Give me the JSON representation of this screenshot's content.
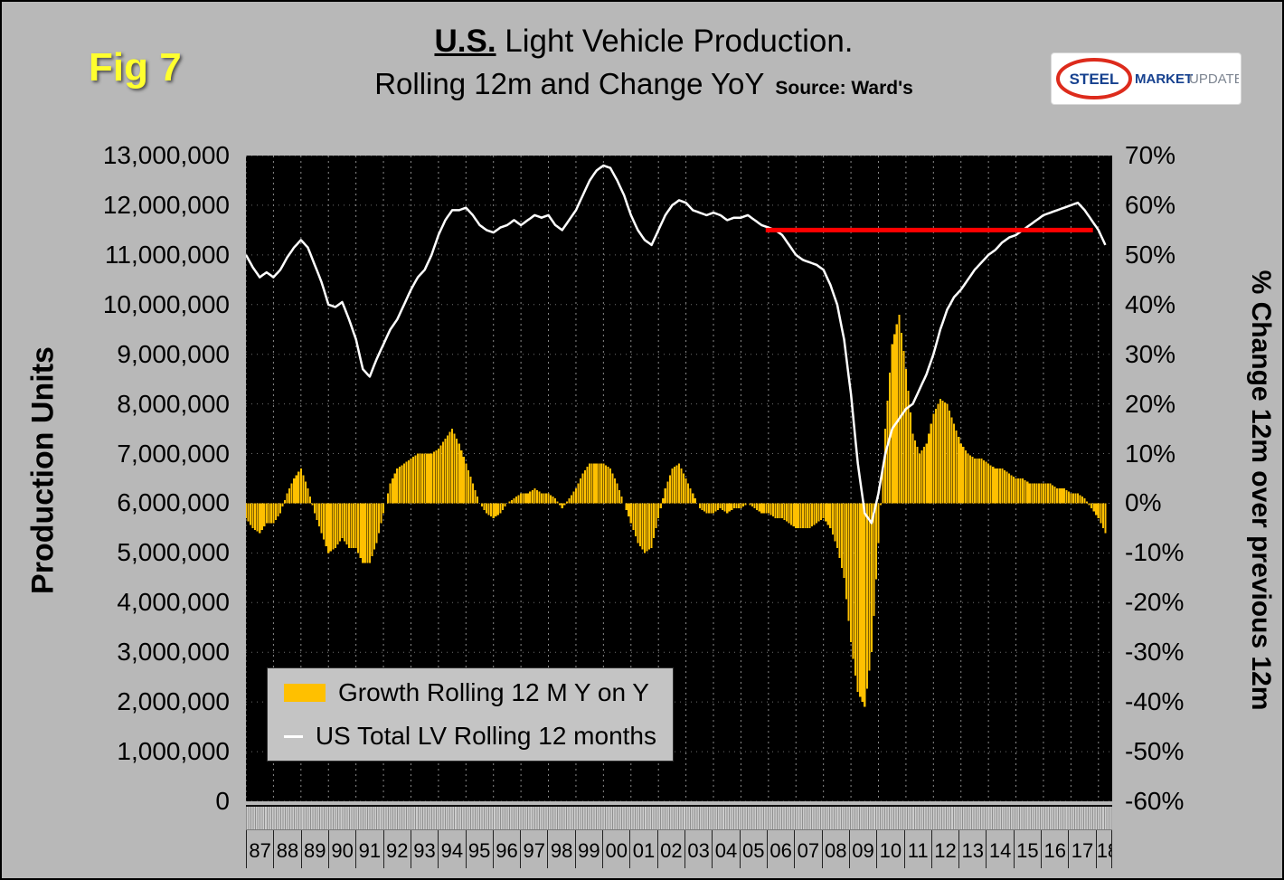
{
  "figure": {
    "fig_label": "Fig 7",
    "title_main_bold": "U.S.",
    "title_main_rest": " Light Vehicle Production.",
    "title_sub": "Rolling 12m and Change YoY",
    "source": "Source: Ward's"
  },
  "logo": {
    "steel": "STEEL",
    "market": "MARKET",
    "update": "UPDATE"
  },
  "axes": {
    "left_title": "Production Units",
    "right_title": "% Change 12m over previous 12m",
    "left_ticks": [
      "13,000,000",
      "12,000,000",
      "11,000,000",
      "10,000,000",
      "9,000,000",
      "8,000,000",
      "7,000,000",
      "6,000,000",
      "5,000,000",
      "4,000,000",
      "3,000,000",
      "2,000,000",
      "1,000,000",
      "0"
    ],
    "right_ticks": [
      "70%",
      "60%",
      "50%",
      "40%",
      "30%",
      "20%",
      "10%",
      "0%",
      "-10%",
      "-20%",
      "-30%",
      "-40%",
      "-50%",
      "-60%"
    ],
    "x_ticks": [
      "87",
      "88",
      "89",
      "90",
      "91",
      "92",
      "93",
      "94",
      "95",
      "96",
      "97",
      "98",
      "99",
      "00",
      "01",
      "02",
      "03",
      "04",
      "05",
      "06",
      "07",
      "08",
      "09",
      "10",
      "11",
      "12",
      "13",
      "14",
      "15",
      "16",
      "17",
      "18"
    ]
  },
  "legend": {
    "bar_label": "Growth Rolling 12 M Y on Y",
    "line_label": "US Total LV Rolling 12 months"
  },
  "colors": {
    "page_bg": "#b8b8b8",
    "plot_bg": "#000000",
    "bar": "#FFC000",
    "line": "#FFFFFF",
    "reference": "#FF0000",
    "fig_label": "#ffff2e"
  },
  "chart_data": {
    "type": "combo",
    "title": "U.S. Light Vehicle Production. Rolling 12m and Change YoY",
    "source": "Ward's",
    "x_start": 1987,
    "x_step_years": 0.25,
    "x_axis": {
      "start": 1987,
      "end": 2018.5
    },
    "left_axis": {
      "label": "Production Units",
      "min": 0,
      "max": 13000000,
      "step": 1000000
    },
    "right_axis": {
      "label": "% Change 12m over previous 12m",
      "min": -60,
      "max": 70,
      "step": 10,
      "unit": "%"
    },
    "grid": true,
    "legend_position": "bottom-left-inside",
    "series": [
      {
        "name": "Growth Rolling 12 M Y on Y",
        "render": "bar",
        "axis": "right",
        "unit": "%",
        "values": [
          -3,
          -5,
          -6,
          -4,
          -4,
          -2,
          2,
          5,
          7,
          3,
          -2,
          -6,
          -10,
          -9,
          -7,
          -9,
          -9,
          -12,
          -12,
          -8,
          -2,
          4,
          7,
          8,
          9,
          10,
          10,
          10,
          11,
          13,
          15,
          12,
          8,
          4,
          0,
          -2,
          -3,
          -2,
          0,
          1,
          2,
          2,
          3,
          2,
          2,
          1,
          -1,
          1,
          3,
          6,
          8,
          8,
          8,
          7,
          4,
          0,
          -4,
          -8,
          -10,
          -9,
          -3,
          3,
          7,
          8,
          5,
          2,
          -1,
          -2,
          -2,
          -1,
          -2,
          -1,
          -1,
          0,
          -1,
          -2,
          -2,
          -3,
          -3,
          -4,
          -5,
          -5,
          -5,
          -4,
          -3,
          -5,
          -9,
          -15,
          -28,
          -38,
          -41,
          -30,
          -8,
          15,
          32,
          38,
          27,
          14,
          10,
          12,
          18,
          21,
          20,
          16,
          12,
          10,
          9,
          9,
          8,
          7,
          7,
          6,
          5,
          5,
          4,
          4,
          4,
          4,
          3,
          3,
          2,
          2,
          1,
          -1,
          -3,
          -6
        ]
      },
      {
        "name": "US Total LV Rolling 12 months",
        "render": "line",
        "axis": "left",
        "unit": "million units",
        "values": [
          11.0,
          10.75,
          10.55,
          10.65,
          10.55,
          10.7,
          10.95,
          11.15,
          11.3,
          11.15,
          10.8,
          10.45,
          10.0,
          9.95,
          10.05,
          9.7,
          9.3,
          8.7,
          8.55,
          8.9,
          9.2,
          9.5,
          9.7,
          10.0,
          10.3,
          10.55,
          10.7,
          11.0,
          11.4,
          11.7,
          11.9,
          11.9,
          11.95,
          11.8,
          11.6,
          11.5,
          11.45,
          11.55,
          11.6,
          11.7,
          11.6,
          11.7,
          11.8,
          11.75,
          11.8,
          11.6,
          11.5,
          11.7,
          11.9,
          12.2,
          12.5,
          12.7,
          12.8,
          12.75,
          12.5,
          12.2,
          11.8,
          11.5,
          11.3,
          11.2,
          11.5,
          11.8,
          12.0,
          12.1,
          12.05,
          11.9,
          11.85,
          11.8,
          11.85,
          11.8,
          11.7,
          11.75,
          11.75,
          11.8,
          11.7,
          11.6,
          11.55,
          11.5,
          11.4,
          11.2,
          11.0,
          10.9,
          10.85,
          10.8,
          10.7,
          10.4,
          10.0,
          9.3,
          8.2,
          6.8,
          5.8,
          5.6,
          6.2,
          7.0,
          7.5,
          7.7,
          7.9,
          8.0,
          8.3,
          8.6,
          9.0,
          9.5,
          9.9,
          10.15,
          10.3,
          10.5,
          10.7,
          10.85,
          11.0,
          11.1,
          11.25,
          11.35,
          11.4,
          11.5,
          11.6,
          11.7,
          11.8,
          11.85,
          11.9,
          11.95,
          12.0,
          12.05,
          11.9,
          11.7,
          11.5,
          11.2
        ]
      }
    ],
    "reference_line": {
      "axis": "left",
      "value": 11500000,
      "x_start": 2005.9,
      "x_end": 2017.8,
      "color": "#FF0000"
    }
  }
}
